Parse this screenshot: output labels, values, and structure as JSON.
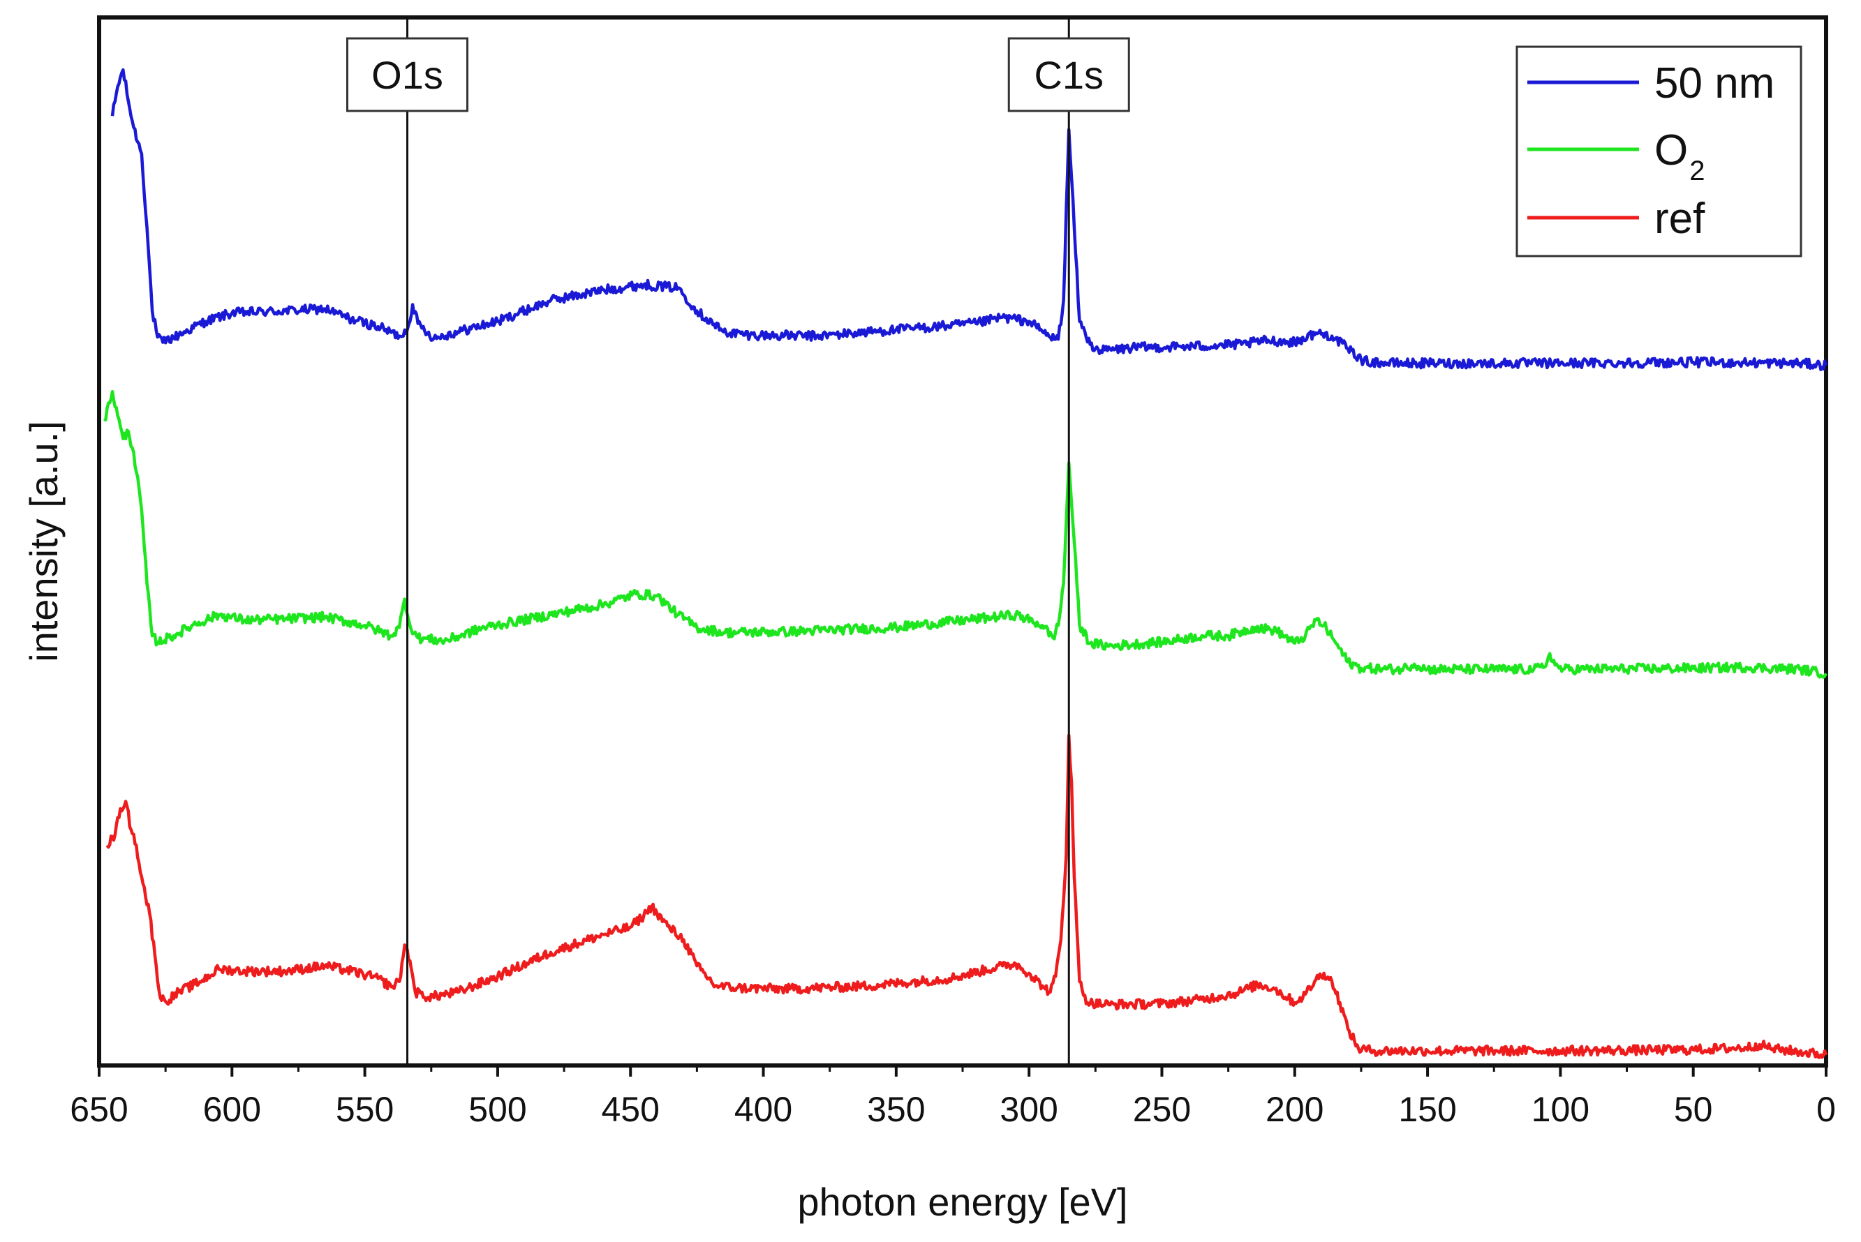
{
  "chart_data": {
    "type": "line",
    "title": "",
    "xlabel": "photon energy [eV]",
    "ylabel": "intensity [a.u.]",
    "xlim": [
      650,
      0
    ],
    "x_reversed": true,
    "ylim": [
      0,
      100
    ],
    "y_ticks_shown": false,
    "grid": false,
    "x_ticks": [
      "650",
      "600",
      "550",
      "500",
      "450",
      "400",
      "350",
      "300",
      "250",
      "200",
      "150",
      "100",
      "50",
      "0"
    ],
    "x_tick_values": [
      650,
      600,
      550,
      500,
      450,
      400,
      350,
      300,
      250,
      200,
      150,
      100,
      50,
      0
    ],
    "markers": [
      {
        "label": "O1s",
        "x": 534
      },
      {
        "label": "C1s",
        "x": 285
      }
    ],
    "legend": {
      "placement": "top-right",
      "entries": [
        {
          "name": "50 nm",
          "color": "#1a1ad6"
        },
        {
          "name": "O",
          "subscript": "2",
          "color": "#1ee61e"
        },
        {
          "name": "ref",
          "color": "#ee1c1c"
        }
      ]
    },
    "series": [
      {
        "name": "50 nm",
        "color": "#1a1ad6",
        "noise": 0.45,
        "points": [
          [
            645,
            90.6
          ],
          [
            643,
            93.4
          ],
          [
            641,
            95.0
          ],
          [
            639,
            92.0
          ],
          [
            637,
            89.5
          ],
          [
            634,
            87.0
          ],
          [
            632,
            80.0
          ],
          [
            630,
            72.0
          ],
          [
            628,
            69.5
          ],
          [
            626,
            69.0
          ],
          [
            620,
            69.7
          ],
          [
            610,
            71.0
          ],
          [
            600,
            71.8
          ],
          [
            580,
            72.0
          ],
          [
            565,
            72.2
          ],
          [
            555,
            71.2
          ],
          [
            545,
            70.5
          ],
          [
            537,
            69.6
          ],
          [
            534,
            70.2
          ],
          [
            532,
            72.6
          ],
          [
            530,
            70.8
          ],
          [
            524,
            69.4
          ],
          [
            515,
            70.0
          ],
          [
            500,
            71.0
          ],
          [
            480,
            73.0
          ],
          [
            460,
            74.0
          ],
          [
            445,
            74.5
          ],
          [
            432,
            74.2
          ],
          [
            425,
            72.0
          ],
          [
            415,
            70.0
          ],
          [
            405,
            69.7
          ],
          [
            380,
            69.6
          ],
          [
            350,
            70.2
          ],
          [
            320,
            70.8
          ],
          [
            310,
            71.4
          ],
          [
            300,
            71.0
          ],
          [
            292,
            69.5
          ],
          [
            289,
            69.3
          ],
          [
            287,
            73.0
          ],
          [
            285,
            89.3
          ],
          [
            283,
            80.0
          ],
          [
            281,
            71.0
          ],
          [
            277,
            68.8
          ],
          [
            273,
            68.2
          ],
          [
            260,
            68.5
          ],
          [
            240,
            68.6
          ],
          [
            220,
            68.8
          ],
          [
            210,
            69.2
          ],
          [
            200,
            69.0
          ],
          [
            192,
            69.9
          ],
          [
            186,
            69.6
          ],
          [
            180,
            68.4
          ],
          [
            174,
            67.2
          ],
          [
            165,
            67.0
          ],
          [
            150,
            67.0
          ],
          [
            100,
            67.0
          ],
          [
            50,
            67.1
          ],
          [
            10,
            67.0
          ],
          [
            0,
            66.8
          ]
        ]
      },
      {
        "name": "O2",
        "color": "#1ee61e",
        "noise": 0.45,
        "points": [
          [
            648,
            61.5
          ],
          [
            645,
            64.3
          ],
          [
            643,
            62.0
          ],
          [
            641,
            59.8
          ],
          [
            639,
            60.5
          ],
          [
            637,
            58.5
          ],
          [
            634,
            53.0
          ],
          [
            632,
            46.0
          ],
          [
            630,
            41.0
          ],
          [
            628,
            40.4
          ],
          [
            622,
            41.0
          ],
          [
            615,
            42.0
          ],
          [
            605,
            43.0
          ],
          [
            595,
            42.5
          ],
          [
            580,
            42.6
          ],
          [
            565,
            42.8
          ],
          [
            550,
            42.0
          ],
          [
            540,
            41.0
          ],
          [
            537,
            41.8
          ],
          [
            535,
            44.5
          ],
          [
            533,
            42.0
          ],
          [
            530,
            40.8
          ],
          [
            520,
            40.5
          ],
          [
            505,
            41.8
          ],
          [
            480,
            43.0
          ],
          [
            460,
            44.0
          ],
          [
            448,
            45.0
          ],
          [
            440,
            44.8
          ],
          [
            432,
            43.0
          ],
          [
            425,
            41.8
          ],
          [
            415,
            41.3
          ],
          [
            390,
            41.4
          ],
          [
            350,
            41.8
          ],
          [
            320,
            42.6
          ],
          [
            305,
            43.0
          ],
          [
            295,
            42.0
          ],
          [
            291,
            40.8
          ],
          [
            289,
            42.0
          ],
          [
            287,
            46.0
          ],
          [
            285,
            57.5
          ],
          [
            283,
            50.0
          ],
          [
            281,
            42.0
          ],
          [
            277,
            40.3
          ],
          [
            270,
            40.0
          ],
          [
            250,
            40.4
          ],
          [
            235,
            41.0
          ],
          [
            225,
            41.0
          ],
          [
            215,
            41.8
          ],
          [
            207,
            41.5
          ],
          [
            200,
            40.3
          ],
          [
            196,
            41.0
          ],
          [
            192,
            42.5
          ],
          [
            189,
            42.0
          ],
          [
            185,
            40.5
          ],
          [
            180,
            38.5
          ],
          [
            175,
            37.9
          ],
          [
            160,
            37.8
          ],
          [
            155,
            38.3
          ],
          [
            150,
            37.8
          ],
          [
            110,
            37.8
          ],
          [
            106,
            38.0
          ],
          [
            104,
            39.3
          ],
          [
            102,
            38.2
          ],
          [
            99,
            37.8
          ],
          [
            50,
            37.9
          ],
          [
            30,
            38.0
          ],
          [
            10,
            37.8
          ],
          [
            0,
            37.4
          ]
        ]
      },
      {
        "name": "ref",
        "color": "#ee1c1c",
        "noise": 0.45,
        "points": [
          [
            647,
            21.0
          ],
          [
            644,
            22.0
          ],
          [
            642,
            24.5
          ],
          [
            640,
            25.2
          ],
          [
            638,
            22.5
          ],
          [
            636,
            21.0
          ],
          [
            634,
            18.0
          ],
          [
            631,
            14.5
          ],
          [
            629,
            10.5
          ],
          [
            627,
            6.5
          ],
          [
            625,
            6.1
          ],
          [
            620,
            7.0
          ],
          [
            612,
            8.0
          ],
          [
            605,
            9.2
          ],
          [
            595,
            9.0
          ],
          [
            580,
            9.0
          ],
          [
            565,
            9.5
          ],
          [
            555,
            9.0
          ],
          [
            545,
            8.3
          ],
          [
            540,
            7.5
          ],
          [
            537,
            8.0
          ],
          [
            535,
            11.5
          ],
          [
            533,
            10.0
          ],
          [
            531,
            7.0
          ],
          [
            526,
            6.5
          ],
          [
            515,
            7.0
          ],
          [
            500,
            8.5
          ],
          [
            480,
            10.8
          ],
          [
            460,
            12.5
          ],
          [
            450,
            13.2
          ],
          [
            445,
            14.3
          ],
          [
            442,
            15.2
          ],
          [
            440,
            14.5
          ],
          [
            436,
            13.3
          ],
          [
            430,
            12.0
          ],
          [
            425,
            9.5
          ],
          [
            418,
            7.6
          ],
          [
            410,
            7.4
          ],
          [
            390,
            7.3
          ],
          [
            360,
            7.6
          ],
          [
            330,
            8.3
          ],
          [
            310,
            9.5
          ],
          [
            305,
            9.7
          ],
          [
            300,
            8.8
          ],
          [
            295,
            7.6
          ],
          [
            292,
            7.0
          ],
          [
            290,
            8.5
          ],
          [
            288,
            12.0
          ],
          [
            286,
            20.0
          ],
          [
            285,
            31.5
          ],
          [
            284,
            27.0
          ],
          [
            283,
            18.0
          ],
          [
            281,
            8.0
          ],
          [
            278,
            6.0
          ],
          [
            270,
            5.8
          ],
          [
            250,
            5.9
          ],
          [
            235,
            6.3
          ],
          [
            222,
            6.9
          ],
          [
            214,
            7.7
          ],
          [
            208,
            7.4
          ],
          [
            200,
            6.0
          ],
          [
            196,
            6.8
          ],
          [
            192,
            8.2
          ],
          [
            189,
            8.8
          ],
          [
            186,
            8.0
          ],
          [
            183,
            6.0
          ],
          [
            180,
            3.5
          ],
          [
            176,
            1.6
          ],
          [
            170,
            1.4
          ],
          [
            150,
            1.4
          ],
          [
            100,
            1.4
          ],
          [
            50,
            1.5
          ],
          [
            30,
            1.7
          ],
          [
            25,
            2.0
          ],
          [
            20,
            1.6
          ],
          [
            10,
            1.3
          ],
          [
            0,
            1.0
          ]
        ]
      }
    ]
  }
}
